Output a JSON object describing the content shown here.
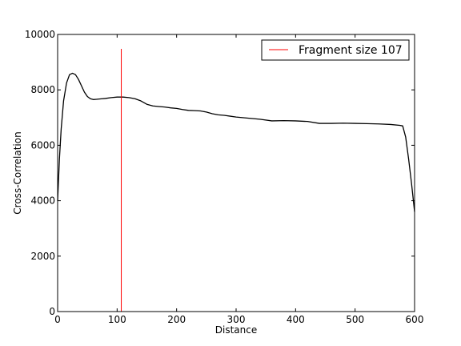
{
  "chart_data": {
    "type": "line",
    "xlabel": "Distance",
    "ylabel": "Cross-Correlation",
    "xlim": [
      0,
      600
    ],
    "ylim": [
      0,
      10000
    ],
    "xticks": [
      0,
      100,
      200,
      300,
      400,
      500,
      600
    ],
    "yticks": [
      0,
      2000,
      4000,
      6000,
      8000,
      10000
    ],
    "xtick_labels": [
      "0",
      "100",
      "200",
      "300",
      "400",
      "500",
      "600"
    ],
    "ytick_labels": [
      "0",
      "2000",
      "4000",
      "6000",
      "8000",
      "10000"
    ],
    "grid": false,
    "legend": {
      "placement": "top-right",
      "entries": [
        "Fragment size 107"
      ]
    },
    "series": [
      {
        "color": "#000000",
        "x": [
          0,
          3,
          6,
          10,
          15,
          20,
          25,
          30,
          35,
          40,
          45,
          50,
          55,
          60,
          65,
          70,
          80,
          90,
          100,
          110,
          120,
          130,
          140,
          150,
          160,
          170,
          180,
          190,
          200,
          210,
          220,
          230,
          240,
          250,
          260,
          270,
          280,
          290,
          300,
          320,
          340,
          360,
          380,
          400,
          420,
          440,
          450,
          460,
          480,
          500,
          520,
          540,
          560,
          575,
          580,
          585,
          590,
          595,
          600
        ],
        "y": [
          4000,
          5500,
          6600,
          7600,
          8250,
          8550,
          8600,
          8550,
          8380,
          8150,
          7920,
          7760,
          7680,
          7650,
          7660,
          7670,
          7690,
          7720,
          7740,
          7740,
          7720,
          7680,
          7600,
          7480,
          7420,
          7400,
          7380,
          7350,
          7330,
          7290,
          7260,
          7250,
          7240,
          7200,
          7140,
          7100,
          7080,
          7050,
          7020,
          6980,
          6940,
          6880,
          6890,
          6880,
          6860,
          6790,
          6790,
          6790,
          6800,
          6790,
          6780,
          6770,
          6750,
          6720,
          6700,
          6300,
          5500,
          4600,
          3600
        ]
      },
      {
        "name": "Fragment size 107",
        "type": "vline",
        "color": "#ff0000",
        "x": [
          107,
          107
        ],
        "y": [
          0,
          9480
        ]
      }
    ]
  }
}
